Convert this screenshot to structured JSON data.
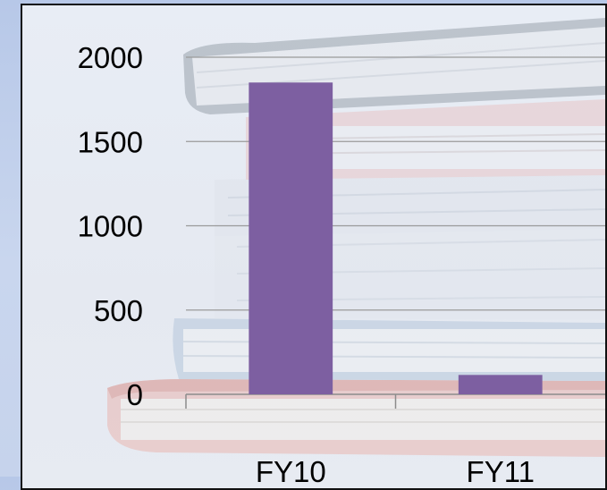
{
  "chart_data": {
    "type": "bar",
    "categories": [
      "FY10",
      "FY11"
    ],
    "values": [
      1850,
      115
    ],
    "yticks": [
      0,
      500,
      1000,
      1500,
      2000
    ],
    "ylim": [
      0,
      2000
    ],
    "bar_color": "#7d5fa1",
    "gridlines": true,
    "legend": "none"
  },
  "background": {
    "type": "image",
    "subject": "stack-of-books"
  }
}
